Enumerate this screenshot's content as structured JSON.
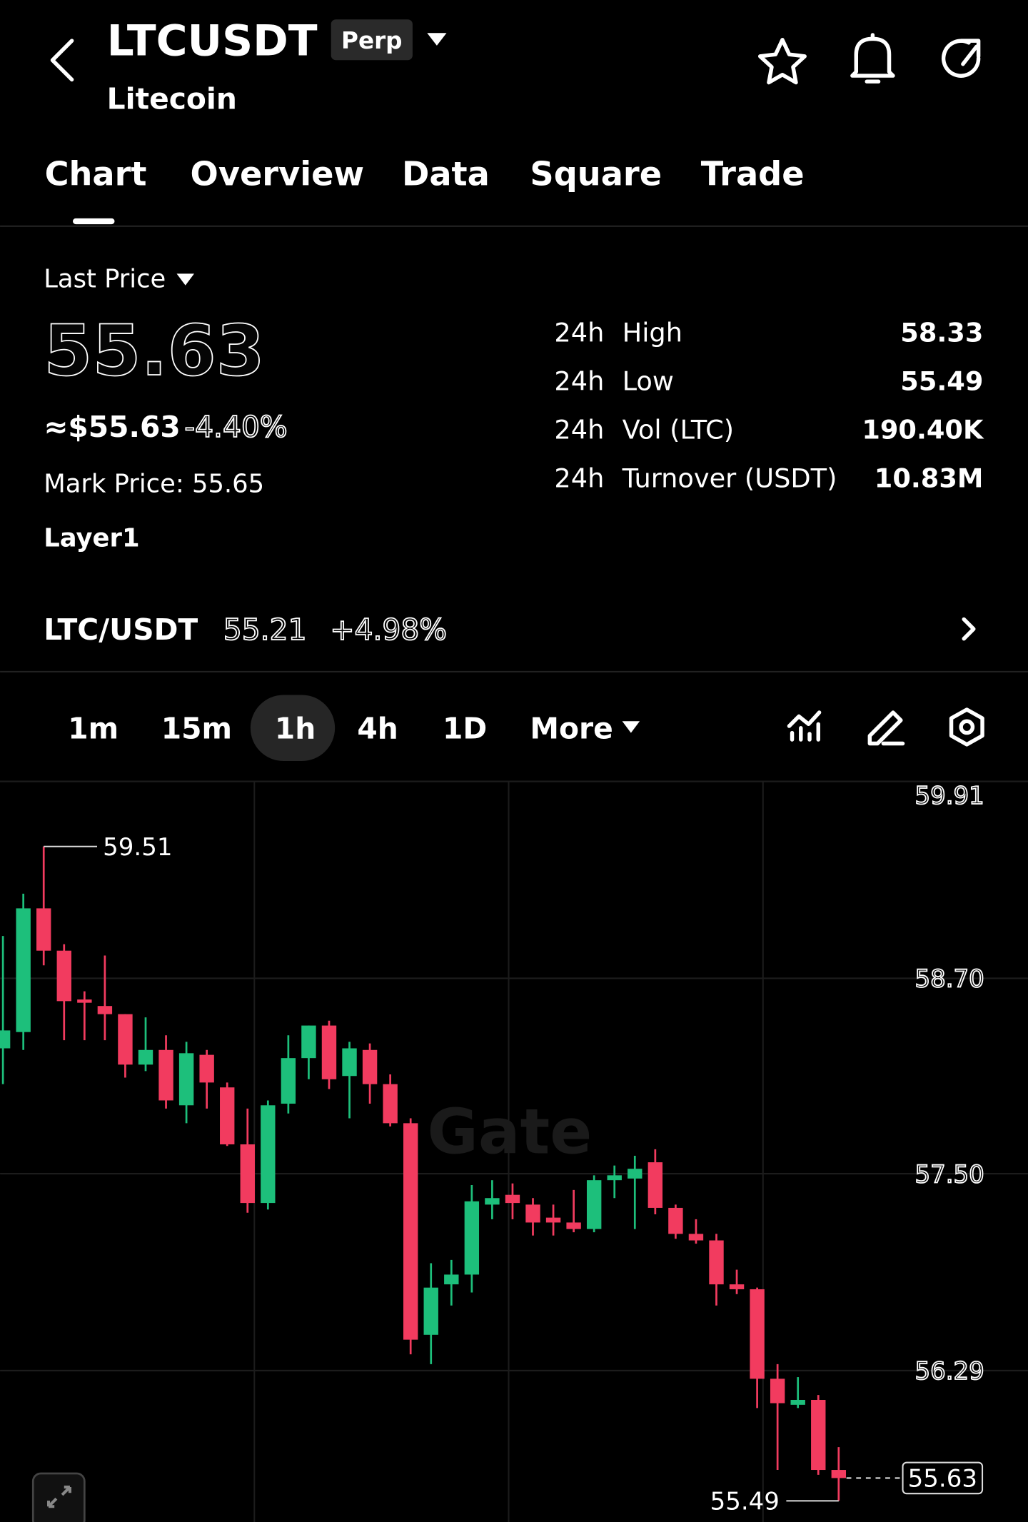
{
  "header": {
    "symbol": "LTCUSDT",
    "badge": "Perp",
    "name": "Litecoin"
  },
  "tabs": [
    "Chart",
    "Overview",
    "Data",
    "Square",
    "Trade"
  ],
  "price": {
    "label": "Last Price",
    "last": "55.63",
    "usd": "≈$55.63",
    "change": "-4.40%",
    "mark": "Mark Price: 55.65",
    "tag": "Layer1"
  },
  "stats": {
    "rows": [
      [
        "24h",
        "High",
        "58.33"
      ],
      [
        "24h",
        "Low",
        "55.49"
      ],
      [
        "24h",
        "Vol (LTC)",
        "190.40K"
      ],
      [
        "24h",
        "Turnover (USDT)",
        "10.83M"
      ]
    ]
  },
  "spot": {
    "pair": "LTC/USDT",
    "price": "55.21",
    "change": "+4.98%"
  },
  "intervals": [
    "1m",
    "15m",
    "1h",
    "4h",
    "1D",
    "More"
  ],
  "chart_data": {
    "type": "candlestick",
    "watermark": "Gate",
    "open": [
      58.27,
      58.37,
      59.13,
      58.87,
      58.57,
      58.53,
      58.48,
      58.17,
      58.26,
      57.92,
      58.23,
      58.03,
      57.68,
      57.32,
      57.93,
      58.21,
      58.41,
      58.1,
      58.26,
      58.05,
      57.81,
      56.51,
      56.82,
      56.88,
      57.31,
      57.37,
      57.31,
      57.23,
      57.2,
      57.16,
      57.46,
      57.47,
      57.57,
      57.29,
      57.13,
      57.09,
      56.82,
      56.79,
      56.24,
      56.08,
      56.11,
      55.68
    ],
    "high": [
      58.96,
      59.22,
      59.51,
      58.91,
      58.62,
      58.84,
      58.48,
      58.46,
      58.35,
      58.31,
      58.26,
      58.06,
      57.9,
      57.95,
      58.35,
      58.41,
      58.44,
      58.31,
      58.3,
      58.11,
      57.84,
      56.95,
      56.97,
      57.43,
      57.46,
      57.44,
      57.35,
      57.31,
      57.4,
      57.49,
      57.55,
      57.61,
      57.65,
      57.31,
      57.22,
      57.13,
      56.91,
      56.8,
      56.33,
      56.25,
      56.14,
      55.82
    ],
    "low": [
      58.05,
      58.26,
      58.78,
      58.32,
      58.32,
      58.32,
      58.09,
      58.13,
      57.9,
      57.81,
      57.9,
      57.67,
      57.26,
      57.28,
      57.87,
      58.08,
      58.02,
      57.84,
      57.93,
      57.79,
      56.39,
      56.33,
      56.69,
      56.77,
      57.22,
      57.22,
      57.12,
      57.12,
      57.14,
      57.14,
      57.35,
      57.16,
      57.25,
      57.1,
      57.07,
      56.69,
      56.76,
      56.06,
      55.68,
      56.06,
      55.65,
      55.49
    ],
    "close": [
      58.38,
      59.13,
      58.87,
      58.56,
      58.55,
      58.48,
      58.17,
      58.26,
      57.95,
      58.24,
      58.06,
      57.68,
      57.32,
      57.92,
      58.21,
      58.41,
      58.08,
      58.27,
      58.05,
      57.81,
      56.48,
      56.8,
      56.88,
      57.33,
      57.35,
      57.32,
      57.2,
      57.2,
      57.16,
      57.46,
      57.49,
      57.53,
      57.29,
      57.13,
      57.09,
      56.82,
      56.79,
      56.24,
      56.09,
      56.11,
      55.68,
      55.63
    ],
    "up_color": "#1dbf7b",
    "down_color": "#f23b5f",
    "ylim": [
      55.36,
      59.91
    ],
    "yticks": [
      59.91,
      {
        "value": 58.7,
        "label": "58.70"
      },
      {
        "value": 57.5,
        "label": "57.50"
      },
      56.29
    ],
    "grid": true,
    "annotations": {
      "high": 59.51,
      "low": 55.49,
      "last": 55.63
    }
  }
}
